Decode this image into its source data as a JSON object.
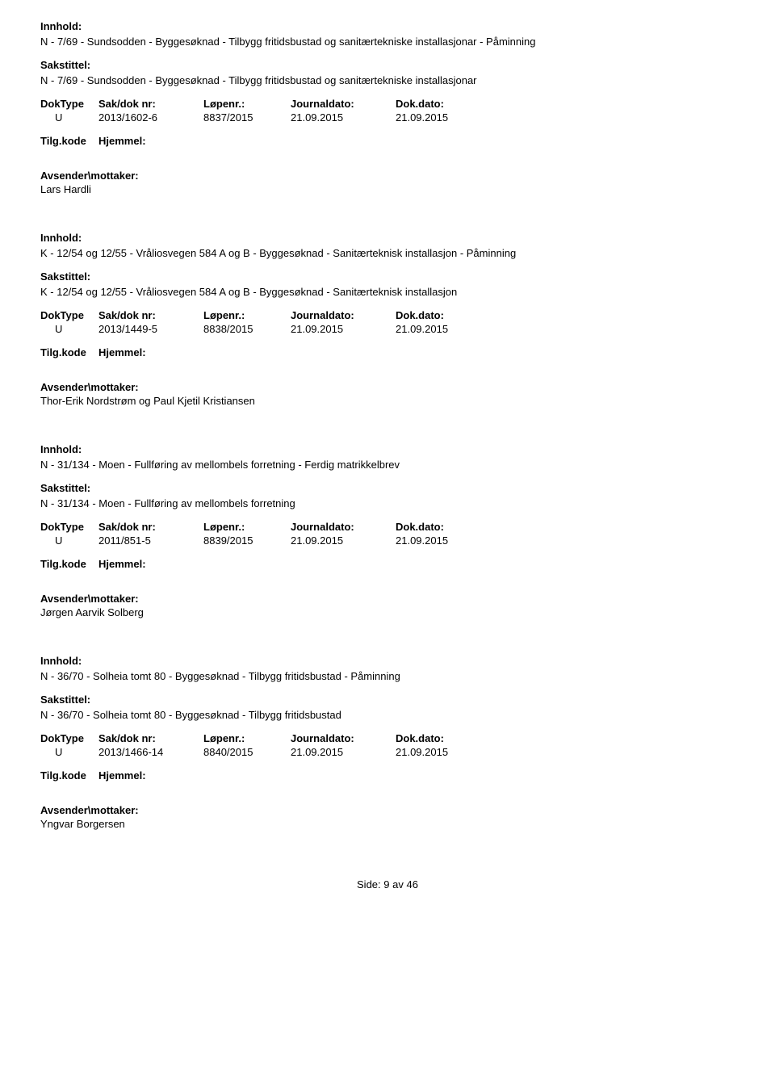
{
  "labels": {
    "innhold": "Innhold:",
    "sakstittel": "Sakstittel:",
    "doktype": "DokType",
    "sakdoknr": "Sak/dok nr:",
    "lopenr": "Løpenr.:",
    "journaldato": "Journaldato:",
    "dokdato": "Dok.dato:",
    "tilgkode": "Tilg.kode",
    "hjemmel": "Hjemmel:",
    "avsender": "Avsender\\mottaker:",
    "side": "Side:"
  },
  "records": [
    {
      "innhold": "N - 7/69 - Sundsodden - Byggesøknad - Tilbygg fritidsbustad og sanitærtekniske installasjonar - Påminning",
      "sakstittel": "N - 7/69 - Sundsodden - Byggesøknad - Tilbygg fritidsbustad og sanitærtekniske installasjonar",
      "doktype": "U",
      "sakdoknr": "2013/1602-6",
      "lopenr": "8837/2015",
      "journaldato": "21.09.2015",
      "dokdato": "21.09.2015",
      "avsender": "Lars Hardli"
    },
    {
      "innhold": "K - 12/54 og 12/55 - Vråliosvegen 584 A og B - Byggesøknad - Sanitærteknisk installasjon - Påminning",
      "sakstittel": "K - 12/54 og 12/55 - Vråliosvegen 584 A og B - Byggesøknad - Sanitærteknisk installasjon",
      "doktype": "U",
      "sakdoknr": "2013/1449-5",
      "lopenr": "8838/2015",
      "journaldato": "21.09.2015",
      "dokdato": "21.09.2015",
      "avsender": "Thor-Erik Nordstrøm og Paul Kjetil Kristiansen"
    },
    {
      "innhold": "N - 31/134 - Moen - Fullføring av mellombels forretning - Ferdig matrikkelbrev",
      "sakstittel": "N - 31/134 - Moen - Fullføring av mellombels forretning",
      "doktype": "U",
      "sakdoknr": "2011/851-5",
      "lopenr": "8839/2015",
      "journaldato": "21.09.2015",
      "dokdato": "21.09.2015",
      "avsender": "Jørgen Aarvik Solberg"
    },
    {
      "innhold": "N - 36/70 - Solheia tomt 80 - Byggesøknad - Tilbygg fritidsbustad - Påminning",
      "sakstittel": "N - 36/70 - Solheia tomt 80 - Byggesøknad - Tilbygg fritidsbustad",
      "doktype": "U",
      "sakdoknr": "2013/1466-14",
      "lopenr": "8840/2015",
      "journaldato": "21.09.2015",
      "dokdato": "21.09.2015",
      "avsender": "Yngvar Borgersen"
    }
  ],
  "page": {
    "current": "9",
    "sep": "av",
    "total": "46"
  }
}
